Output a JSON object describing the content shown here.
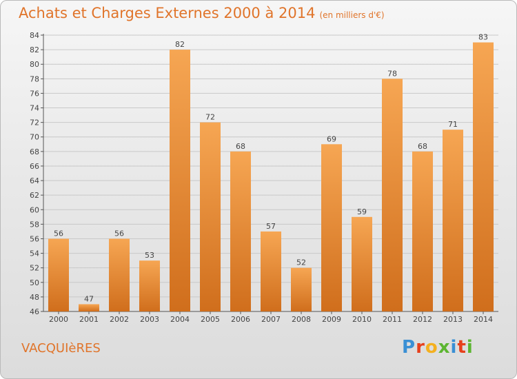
{
  "header": {
    "title": "Achats et Charges Externes 2000 à 2014",
    "unit": "(en milliers d'€)"
  },
  "footer": {
    "commune": "VACQUIèRES",
    "logo_letters": [
      "P",
      "r",
      "o",
      "x",
      "i",
      "t",
      "i"
    ],
    "logo_colors": [
      "#3a8fd4",
      "#e7401c",
      "#f4b01f",
      "#5cb531",
      "#3a8fd4",
      "#e7401c",
      "#5cb531"
    ]
  },
  "colors": {
    "bar_light": "#f6a653",
    "bar_dark": "#d06e1c",
    "text": "#444444",
    "grid": "#c8c8c8"
  },
  "chart_data": {
    "type": "bar",
    "title": "Achats et Charges Externes 2000 à 2014",
    "subtitle": "(en milliers d'€)",
    "xlabel": "",
    "ylabel": "",
    "categories": [
      "2000",
      "2001",
      "2002",
      "2003",
      "2004",
      "2005",
      "2006",
      "2007",
      "2008",
      "2009",
      "2010",
      "2011",
      "2012",
      "2013",
      "2014"
    ],
    "values": [
      56,
      47,
      56,
      53,
      82,
      72,
      68,
      57,
      52,
      69,
      59,
      78,
      68,
      71,
      83
    ],
    "ylim": [
      46,
      84
    ],
    "yticks": [
      46,
      48,
      50,
      52,
      54,
      56,
      58,
      60,
      62,
      64,
      66,
      68,
      70,
      72,
      74,
      76,
      78,
      80,
      82,
      84
    ],
    "grid": true,
    "legend": "none"
  }
}
